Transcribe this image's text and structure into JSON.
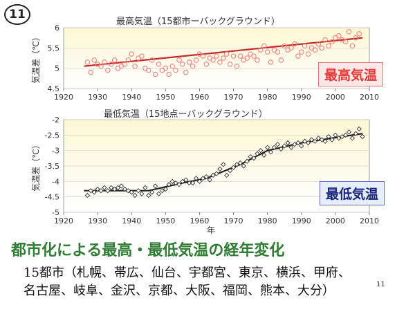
{
  "slide_number": "11",
  "chart_data": [
    {
      "type": "scatter",
      "title": "最高気温（15都市ーバックグラウンド）",
      "ylabel": "気温差（℃）",
      "legend": "最高気温",
      "xlim": [
        1920,
        2010
      ],
      "ylim": [
        4.5,
        6
      ],
      "x_ticks": [
        1920,
        1930,
        1940,
        1950,
        1960,
        1970,
        1980,
        1990,
        2000,
        2010
      ],
      "y_ticks": [
        4.5,
        5,
        5.5,
        6
      ],
      "marker_color": "#f08080",
      "trend_color": "#c62828",
      "x": [
        1927,
        1928,
        1929,
        1930,
        1931,
        1932,
        1933,
        1934,
        1935,
        1936,
        1937,
        1938,
        1939,
        1940,
        1941,
        1942,
        1943,
        1944,
        1945,
        1946,
        1947,
        1948,
        1949,
        1950,
        1951,
        1952,
        1953,
        1954,
        1955,
        1956,
        1957,
        1958,
        1959,
        1960,
        1961,
        1962,
        1963,
        1964,
        1965,
        1966,
        1967,
        1968,
        1969,
        1970,
        1971,
        1972,
        1973,
        1974,
        1975,
        1976,
        1977,
        1978,
        1979,
        1980,
        1981,
        1982,
        1983,
        1984,
        1985,
        1986,
        1987,
        1988,
        1989,
        1990,
        1991,
        1992,
        1993,
        1994,
        1995,
        1996,
        1997,
        1998,
        1999,
        2000,
        2001,
        2002,
        2003,
        2004,
        2005,
        2006,
        2007
      ],
      "y": [
        5.15,
        4.9,
        5.2,
        5.1,
        5.05,
        5.15,
        4.95,
        5.1,
        5.2,
        5.0,
        5.05,
        5.1,
        5.2,
        5.35,
        5.05,
        5.25,
        5.3,
        5.0,
        4.95,
        5.2,
        4.85,
        5.1,
        4.95,
        5.0,
        4.85,
        5.05,
        4.95,
        5.2,
        5.1,
        4.9,
        5.15,
        5.05,
        5.2,
        5.35,
        5.3,
        5.1,
        5.25,
        5.2,
        5.3,
        5.15,
        5.25,
        5.35,
        5.1,
        5.3,
        5.05,
        5.3,
        5.2,
        5.25,
        5.35,
        5.3,
        5.2,
        5.45,
        5.55,
        5.4,
        5.15,
        5.45,
        5.4,
        5.2,
        5.55,
        5.45,
        5.5,
        5.6,
        5.3,
        5.4,
        5.55,
        5.35,
        5.5,
        5.45,
        5.6,
        5.5,
        5.7,
        5.55,
        5.65,
        5.75,
        5.8,
        5.7,
        5.65,
        5.9,
        5.55,
        5.75,
        5.85
      ],
      "trend": [
        [
          1926,
          5.05
        ],
        [
          2008,
          5.75
        ]
      ]
    },
    {
      "type": "scatter",
      "title": "最低気温（15地点ーバックグラウンド）",
      "ylabel": "気温差（℃）",
      "xlabel": "年",
      "legend": "最低気温",
      "xlim": [
        1920,
        2010
      ],
      "ylim": [
        -5,
        -2
      ],
      "x_ticks": [
        1920,
        1930,
        1940,
        1950,
        1960,
        1970,
        1980,
        1990,
        2000,
        2010
      ],
      "y_ticks": [
        -5,
        -4.5,
        -4,
        -3.5,
        -3,
        -2.5,
        -2
      ],
      "marker_color": "#333333",
      "trend_color": "#222222",
      "x": [
        1927,
        1928,
        1929,
        1930,
        1931,
        1932,
        1933,
        1934,
        1935,
        1936,
        1937,
        1938,
        1939,
        1940,
        1941,
        1942,
        1943,
        1944,
        1945,
        1946,
        1947,
        1948,
        1949,
        1950,
        1951,
        1952,
        1953,
        1954,
        1955,
        1956,
        1957,
        1958,
        1959,
        1960,
        1961,
        1962,
        1963,
        1964,
        1965,
        1966,
        1967,
        1968,
        1969,
        1970,
        1971,
        1972,
        1973,
        1974,
        1975,
        1976,
        1977,
        1978,
        1979,
        1980,
        1981,
        1982,
        1983,
        1984,
        1985,
        1986,
        1987,
        1988,
        1989,
        1990,
        1991,
        1992,
        1993,
        1994,
        1995,
        1996,
        1997,
        1998,
        1999,
        2000,
        2001,
        2002,
        2003,
        2004,
        2005,
        2006,
        2007,
        2008
      ],
      "y": [
        -4.45,
        -4.3,
        -4.35,
        -4.25,
        -4.3,
        -4.2,
        -4.3,
        -4.2,
        -4.25,
        -4.2,
        -4.15,
        -4.25,
        -4.3,
        -4.35,
        -4.45,
        -4.3,
        -4.4,
        -4.2,
        -4.45,
        -4.35,
        -4.15,
        -4.4,
        -4.3,
        -4.25,
        -4.1,
        -4.0,
        -4.05,
        -4.1,
        -4.0,
        -3.95,
        -4.05,
        -4.05,
        -3.9,
        -4.0,
        -3.9,
        -3.85,
        -3.95,
        -3.8,
        -3.75,
        -3.6,
        -3.45,
        -3.8,
        -3.65,
        -3.55,
        -3.45,
        -3.4,
        -3.5,
        -3.35,
        -3.2,
        -3.25,
        -3.1,
        -3.0,
        -3.15,
        -2.9,
        -3.05,
        -2.9,
        -2.8,
        -2.95,
        -2.85,
        -2.75,
        -2.9,
        -2.8,
        -2.75,
        -2.85,
        -2.7,
        -2.75,
        -2.65,
        -2.7,
        -2.6,
        -2.65,
        -2.7,
        -2.55,
        -2.65,
        -2.5,
        -2.6,
        -2.55,
        -2.5,
        -2.4,
        -2.6,
        -2.45,
        -2.3,
        -2.55
      ],
      "trend": [
        [
          1926,
          -4.3
        ],
        [
          1945,
          -4.3
        ],
        [
          1955,
          -4.05
        ],
        [
          1962,
          -3.9
        ],
        [
          1972,
          -3.45
        ],
        [
          1980,
          -3.0
        ],
        [
          1990,
          -2.75
        ],
        [
          2008,
          -2.45
        ]
      ]
    }
  ],
  "heading": "都市化による最高・最低気温の経年変化",
  "cities_line1": "15都市（札幌、帯広、仙台、宇都宮、東京、横浜、甲府、",
  "cities_line2": "名古屋、岐阜、金沢、京都、大阪、福岡、熊本、大分）",
  "page_number": "11",
  "colors": {
    "heading": "#2e7d32",
    "plot_bg_top": "#fbf8d4",
    "plot_bg_bottom": "#ffffff",
    "legend_top_bg": "#fde8e8",
    "legend_top_text": "#e53935",
    "legend_top_border": "#e57373",
    "legend_bottom_bg": "#e6eef9",
    "legend_bottom_text": "#1a237e",
    "legend_bottom_border": "#5c6bc0"
  }
}
